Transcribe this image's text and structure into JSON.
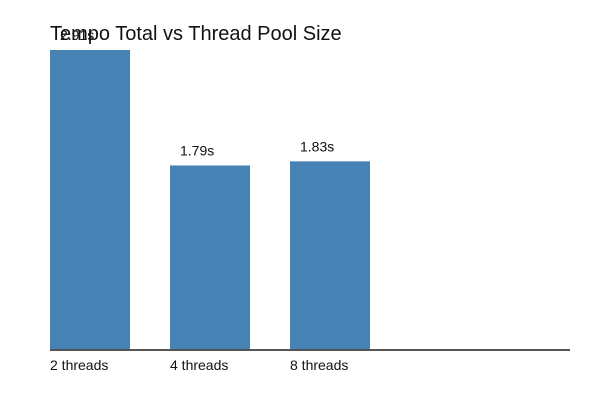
{
  "chart_data": {
    "type": "bar",
    "title": "Tempo Total vs Thread Pool Size",
    "categories": [
      "2 threads",
      "4 threads",
      "8 threads"
    ],
    "values": [
      2.91,
      1.79,
      1.83
    ],
    "value_labels": [
      "2.91s",
      "1.79s",
      "1.83s"
    ],
    "ylim": [
      0,
      2.91
    ],
    "xlabel": "",
    "ylabel": "",
    "grid": false,
    "colors": {
      "bar": "#4682b4",
      "axis": "#555555",
      "text": "#111111"
    }
  }
}
